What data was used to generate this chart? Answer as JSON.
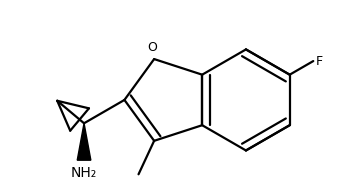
{
  "line_color": "#000000",
  "bg_color": "#ffffff",
  "line_width": 1.6,
  "figsize": [
    3.51,
    1.96
  ],
  "dpi": 100,
  "F_label": "F",
  "O_label": "O",
  "NH2_label": "NH₂",
  "font_size": 9
}
